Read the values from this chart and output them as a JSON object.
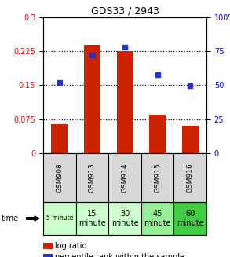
{
  "title": "GDS33 / 2943",
  "samples": [
    "GSM908",
    "GSM913",
    "GSM914",
    "GSM915",
    "GSM916"
  ],
  "time_labels": [
    "5 minute",
    "15\nminute",
    "30\nminute",
    "45\nminute",
    "60\nminute"
  ],
  "time_colors": [
    "#ccffcc",
    "#ccffcc",
    "#ccffcc",
    "#99ee99",
    "#44cc44"
  ],
  "log_ratio": [
    0.065,
    0.24,
    0.225,
    0.085,
    0.06
  ],
  "percentile_rank": [
    52,
    72,
    78,
    58,
    50
  ],
  "bar_color": "#cc2200",
  "dot_color": "#2233cc",
  "ylim_left": [
    0,
    0.3
  ],
  "ylim_right": [
    0,
    100
  ],
  "yticks_left": [
    0,
    0.075,
    0.15,
    0.225,
    0.3
  ],
  "ytick_labels_left": [
    "0",
    "0.075",
    "0.15",
    "0.225",
    "0.3"
  ],
  "yticks_right": [
    0,
    25,
    50,
    75,
    100
  ],
  "ytick_labels_right": [
    "0",
    "25",
    "50",
    "75",
    "100%"
  ],
  "hlines": [
    0.075,
    0.15,
    0.225
  ],
  "bar_width": 0.5,
  "background_color": "#ffffff",
  "plot_bg": "#ffffff",
  "sample_bg": "#d8d8d8"
}
